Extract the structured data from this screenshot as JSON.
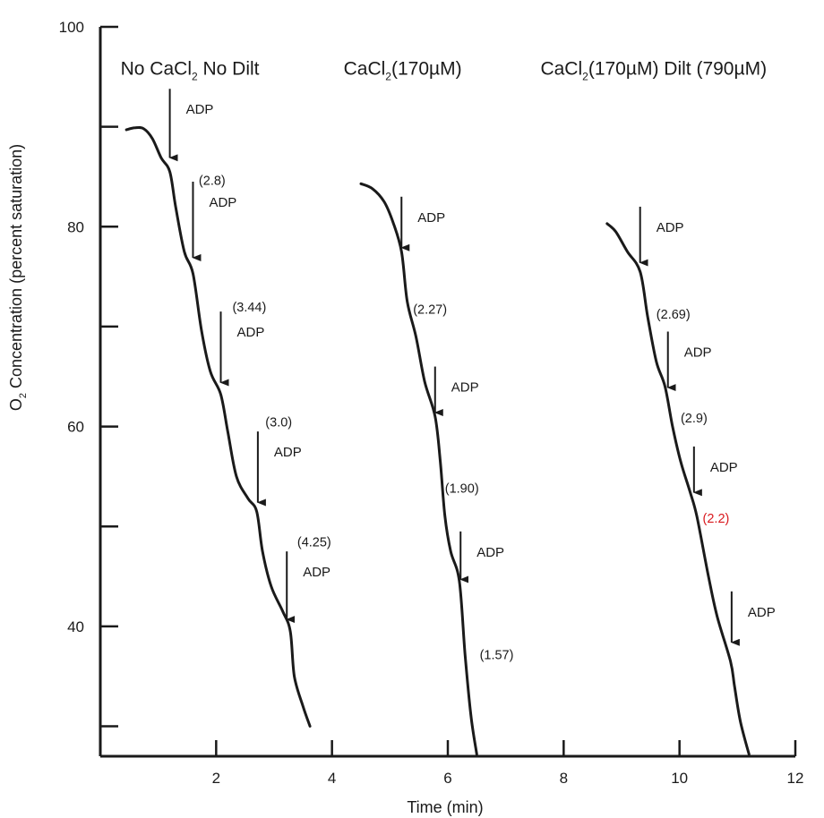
{
  "chart_data": {
    "type": "line",
    "title": "",
    "xlabel": "Time (min)",
    "ylabel": "O",
    "ylabel_sub": "2",
    "ylabel_rest": " Concentration (percent saturation)",
    "xlim": [
      0,
      12
    ],
    "ylim": [
      27,
      100
    ],
    "x_ticks": [
      2,
      4,
      6,
      8,
      10,
      12
    ],
    "x_tick_labels": [
      "2",
      "4",
      "6",
      "8",
      "10",
      "12"
    ],
    "y_ticks": [
      30,
      40,
      50,
      60,
      70,
      80,
      90,
      100
    ],
    "y_tick_labels": [
      "",
      "40",
      "",
      "60",
      "",
      "80",
      "",
      "100"
    ],
    "grid": false,
    "legend": "none",
    "colors": {
      "line": "#1a1a1a",
      "highlight": "#d9191e"
    },
    "conditions": [
      {
        "label_parts": [
          {
            "t": "No CaCl"
          },
          {
            "t": "2",
            "sub": true
          },
          {
            "t": " No Dilt"
          }
        ],
        "label_x": 0.35,
        "label_y": 95.2
      },
      {
        "label_parts": [
          {
            "t": "CaCl"
          },
          {
            "t": "2",
            "sub": true
          },
          {
            "t": "(170µM)"
          }
        ],
        "label_x": 4.2,
        "label_y": 95.2
      },
      {
        "label_parts": [
          {
            "t": "CaCl"
          },
          {
            "t": "2",
            "sub": true
          },
          {
            "t": "(170µM) Dilt (790µM)"
          }
        ],
        "label_x": 7.6,
        "label_y": 95.2
      }
    ],
    "series": [
      {
        "points": [
          [
            0.45,
            89.7
          ],
          [
            0.6,
            89.9
          ],
          [
            0.75,
            89.8
          ],
          [
            0.9,
            88.8
          ],
          [
            1.05,
            86.9
          ],
          [
            1.2,
            85.5
          ],
          [
            1.3,
            82.0
          ],
          [
            1.45,
            77.5
          ],
          [
            1.6,
            75.3
          ],
          [
            1.75,
            69.5
          ],
          [
            1.9,
            65.5
          ],
          [
            2.08,
            63.2
          ],
          [
            2.2,
            59.5
          ],
          [
            2.35,
            55.0
          ],
          [
            2.55,
            52.8
          ],
          [
            2.7,
            51.5
          ],
          [
            2.8,
            47.5
          ],
          [
            2.95,
            44.0
          ],
          [
            3.15,
            41.5
          ],
          [
            3.28,
            39.5
          ],
          [
            3.35,
            35.0
          ],
          [
            3.5,
            32.0
          ],
          [
            3.62,
            30.0
          ]
        ],
        "additions": [
          {
            "label": "ADP",
            "x": 1.2,
            "y_top": 93.8,
            "y_tip": 86.0
          },
          {
            "label": "ADP",
            "x": 1.6,
            "y_top": 84.5,
            "y_tip": 76.0
          },
          {
            "label": "ADP",
            "x": 2.08,
            "y_top": 71.5,
            "y_tip": 63.5
          },
          {
            "label": "ADP",
            "x": 2.72,
            "y_top": 59.5,
            "y_tip": 51.5
          },
          {
            "label": "ADP",
            "x": 3.22,
            "y_top": 47.5,
            "y_tip": 39.8
          }
        ],
        "rates": [
          {
            "label": "(2.8)",
            "x": 1.7,
            "y": 84.2
          },
          {
            "label": "(3.44)",
            "x": 2.28,
            "y": 71.5
          },
          {
            "label": "(3.0)",
            "x": 2.85,
            "y": 60.0
          },
          {
            "label": "(4.25)",
            "x": 3.4,
            "y": 48.0
          }
        ]
      },
      {
        "points": [
          [
            4.5,
            84.3
          ],
          [
            4.7,
            83.8
          ],
          [
            4.9,
            82.5
          ],
          [
            5.05,
            80.5
          ],
          [
            5.2,
            77.5
          ],
          [
            5.3,
            72.5
          ],
          [
            5.45,
            69.0
          ],
          [
            5.6,
            64.5
          ],
          [
            5.78,
            61.0
          ],
          [
            5.87,
            56.5
          ],
          [
            5.95,
            51.0
          ],
          [
            6.05,
            47.5
          ],
          [
            6.2,
            44.5
          ],
          [
            6.3,
            37.0
          ],
          [
            6.4,
            31.0
          ],
          [
            6.5,
            27.2
          ]
        ],
        "additions": [
          {
            "label": "ADP",
            "x": 5.2,
            "y_top": 83.0,
            "y_tip": 77.0
          },
          {
            "label": "ADP",
            "x": 5.78,
            "y_top": 66.0,
            "y_tip": 60.5
          },
          {
            "label": "ADP",
            "x": 6.22,
            "y_top": 49.5,
            "y_tip": 43.8
          }
        ],
        "rates": [
          {
            "label": "(2.27)",
            "x": 5.4,
            "y": 71.3
          },
          {
            "label": "(1.90)",
            "x": 5.95,
            "y": 53.4
          },
          {
            "label": "(1.57)",
            "x": 6.55,
            "y": 36.7
          }
        ]
      },
      {
        "points": [
          [
            8.75,
            80.3
          ],
          [
            8.9,
            79.5
          ],
          [
            9.1,
            77.5
          ],
          [
            9.32,
            75.5
          ],
          [
            9.45,
            71.0
          ],
          [
            9.6,
            66.5
          ],
          [
            9.75,
            64.0
          ],
          [
            9.88,
            60.0
          ],
          [
            10.02,
            56.5
          ],
          [
            10.18,
            53.5
          ],
          [
            10.3,
            51.0
          ],
          [
            10.5,
            45.0
          ],
          [
            10.65,
            41.0
          ],
          [
            10.88,
            36.5
          ],
          [
            10.95,
            34.0
          ],
          [
            11.05,
            30.5
          ],
          [
            11.2,
            27.2
          ]
        ],
        "additions": [
          {
            "label": "ADP",
            "x": 9.32,
            "y_top": 82.0,
            "y_tip": 75.5
          },
          {
            "label": "ADP",
            "x": 9.8,
            "y_top": 69.5,
            "y_tip": 63.0
          },
          {
            "label": "ADP",
            "x": 10.25,
            "y_top": 58.0,
            "y_tip": 52.5
          },
          {
            "label": "ADP",
            "x": 10.9,
            "y_top": 43.5,
            "y_tip": 37.5
          }
        ],
        "rates": [
          {
            "label": "(2.69)",
            "x": 9.6,
            "y": 70.8
          },
          {
            "label": "(2.9)",
            "x": 10.02,
            "y": 60.4
          },
          {
            "label": "(2.2)",
            "x": 10.4,
            "y": 50.4,
            "highlight": true
          }
        ]
      }
    ]
  }
}
